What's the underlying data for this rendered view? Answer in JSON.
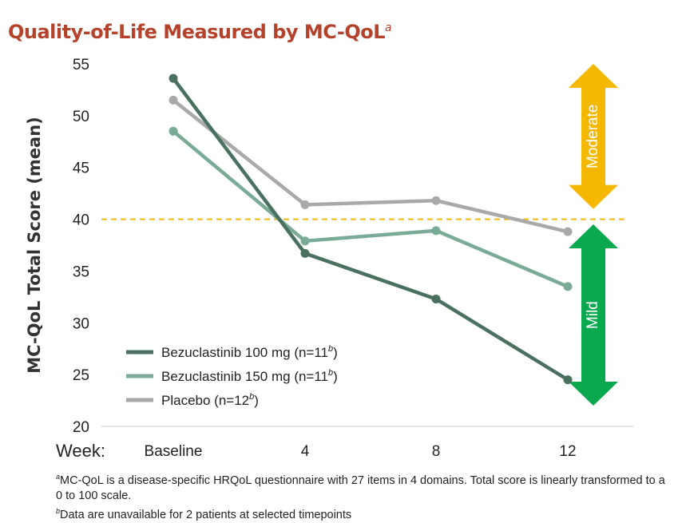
{
  "chart_data": {
    "type": "line",
    "title": "Quality-of-Life Measured by MC-QoL",
    "title_sup": "a",
    "ylabel": "MC-QoL Total Score (mean)",
    "xlabel": "Week:",
    "categories": [
      "Baseline",
      "4",
      "8",
      "12"
    ],
    "ylim": [
      20,
      55
    ],
    "yticks": [
      20,
      25,
      30,
      35,
      40,
      45,
      50,
      55
    ],
    "threshold": 40,
    "series": [
      {
        "name": "Bezuclastinib 100 mg (n=11",
        "sup": "b",
        "suffix": ")",
        "color": "#4a705f",
        "values": [
          53.6,
          36.7,
          32.3,
          24.5
        ]
      },
      {
        "name": "Bezuclastinib 150 mg (n=11",
        "sup": "b",
        "suffix": ")",
        "color": "#79ab96",
        "values": [
          48.5,
          37.9,
          38.9,
          33.5
        ]
      },
      {
        "name": "Placebo (n=12",
        "sup": "b",
        "suffix": ")",
        "color": "#a9a9a9",
        "values": [
          51.5,
          41.4,
          41.8,
          38.8
        ]
      }
    ],
    "annotations": [
      {
        "label": "Moderate",
        "color": "#f5b800",
        "range": [
          41,
          55
        ]
      },
      {
        "label": "Mild",
        "color": "#0aa84f",
        "range": [
          22,
          39.5
        ]
      }
    ]
  },
  "footnotes": {
    "a_mark": "a",
    "a_text": "MC-QoL is a disease-specific HRQoL questionnaire with 27 items in 4 domains.  Total score is linearly transformed to  a 0 to 100 scale.",
    "b_mark": "b",
    "b_text": "Data are unavailable for 2 patients at selected timepoints"
  }
}
